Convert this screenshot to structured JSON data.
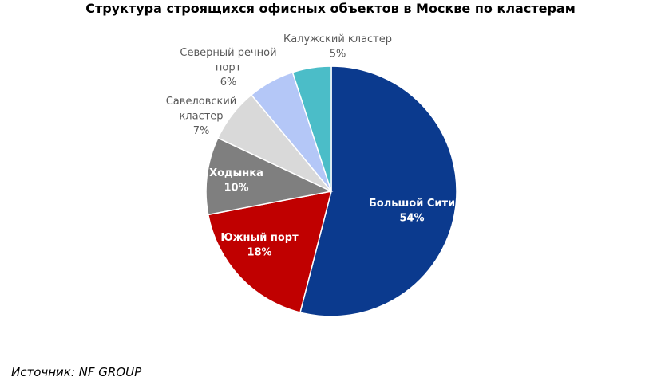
{
  "chart_data": {
    "type": "pie",
    "title": "Структура строящихся офисных объектов в Москве по кластерам",
    "slices": [
      {
        "label": "Большой Сити",
        "value": 54,
        "value_label": "54%",
        "color": "#0b3a8e",
        "label_color": "#ffffff"
      },
      {
        "label": "Южный порт",
        "value": 18,
        "value_label": "18%",
        "color": "#c00000",
        "label_color": "#ffffff"
      },
      {
        "label": "Ходынка",
        "value": 10,
        "value_label": "10%",
        "color": "#7f7f7f",
        "label_color": "#ffffff"
      },
      {
        "label": "Савеловский кластер",
        "value": 7,
        "value_label": "7%",
        "color": "#d9d9d9",
        "label_color": "#595959"
      },
      {
        "label": "Северный речной порт",
        "value": 6,
        "value_label": "6%",
        "color": "#b4c7f7",
        "label_color": "#595959"
      },
      {
        "label": "Калужский кластер",
        "value": 5,
        "value_label": "5%",
        "color": "#4bbdc8",
        "label_color": "#595959"
      }
    ]
  },
  "source": "Источник: NF GROUP"
}
